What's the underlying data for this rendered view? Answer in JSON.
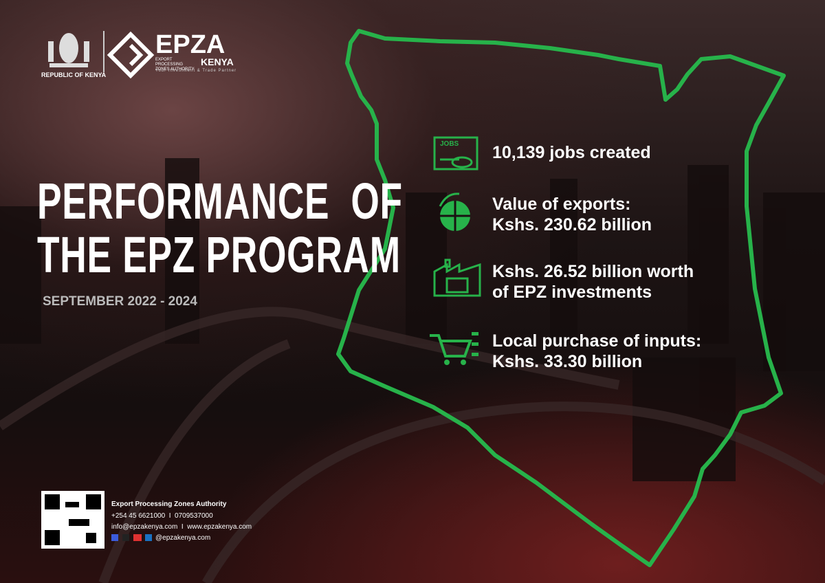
{
  "header": {
    "republic": "REPUBLIC OF KENYA",
    "logo": "EPZA",
    "authority": "EXPORT PROCESSING ZONES AUTHORITY",
    "country": "KENYA",
    "tagline": "Your Investment & Trade Partner"
  },
  "title": [
    "PERFORMANCE  OF",
    "THE EPZ PROGRAM"
  ],
  "period": "SEPTEMBER 2022 - 2024",
  "jobs_icon": "JOBS",
  "stats": [
    [
      "10,139 jobs created"
    ],
    [
      "Value of exports:",
      "Kshs. 230.62 billion"
    ],
    [
      "Kshs. 26.52 billion worth",
      "of EPZ investments"
    ],
    [
      "Local purchase of inputs:",
      "Kshs. 33.30 billion"
    ]
  ],
  "footer": {
    "name": "Export Processing Zones Authority",
    "phone": "+254 45 6621000  I  0709537000",
    "web": "info@epzakenya.com  I  www.epzakenya.com",
    "social": "@epzakenya.com"
  }
}
